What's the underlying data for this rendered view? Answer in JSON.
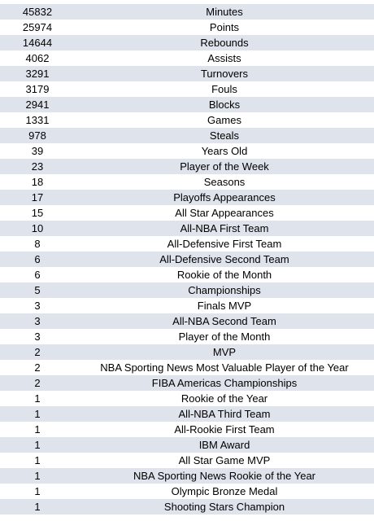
{
  "rows": [
    {
      "value": "45832",
      "label": "Minutes"
    },
    {
      "value": "25974",
      "label": "Points"
    },
    {
      "value": "14644",
      "label": "Rebounds"
    },
    {
      "value": "4062",
      "label": "Assists"
    },
    {
      "value": "3291",
      "label": "Turnovers"
    },
    {
      "value": "3179",
      "label": "Fouls"
    },
    {
      "value": "2941",
      "label": "Blocks"
    },
    {
      "value": "1331",
      "label": "Games"
    },
    {
      "value": "978",
      "label": "Steals"
    },
    {
      "value": "39",
      "label": "Years Old"
    },
    {
      "value": "23",
      "label": "Player of the Week"
    },
    {
      "value": "18",
      "label": "Seasons"
    },
    {
      "value": "17",
      "label": "Playoffs Appearances"
    },
    {
      "value": "15",
      "label": "All Star Appearances"
    },
    {
      "value": "10",
      "label": "All-NBA First Team"
    },
    {
      "value": "8",
      "label": "All-Defensive First Team"
    },
    {
      "value": "6",
      "label": "All-Defensive Second Team"
    },
    {
      "value": "6",
      "label": "Rookie of the Month"
    },
    {
      "value": "5",
      "label": "Championships"
    },
    {
      "value": "3",
      "label": "Finals MVP"
    },
    {
      "value": "3",
      "label": "All-NBA Second Team"
    },
    {
      "value": "3",
      "label": "Player of the Month"
    },
    {
      "value": "2",
      "label": "MVP"
    },
    {
      "value": "2",
      "label": "NBA Sporting News Most Valuable Player of the Year"
    },
    {
      "value": "2",
      "label": "FIBA Americas Championships"
    },
    {
      "value": "1",
      "label": "Rookie of the Year"
    },
    {
      "value": "1",
      "label": "All-NBA Third Team"
    },
    {
      "value": "1",
      "label": "All-Rookie First Team"
    },
    {
      "value": "1",
      "label": "IBM Award"
    },
    {
      "value": "1",
      "label": "All Star Game MVP"
    },
    {
      "value": "1",
      "label": "NBA Sporting News Rookie of the Year"
    },
    {
      "value": "1",
      "label": "Olympic Bronze Medal"
    },
    {
      "value": "1",
      "label": "Shooting Stars Champion"
    }
  ]
}
